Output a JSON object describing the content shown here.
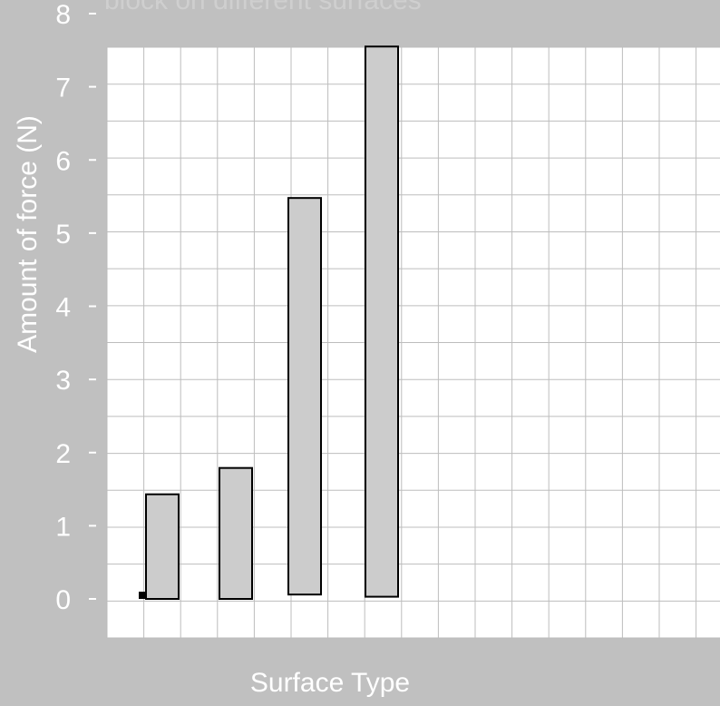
{
  "chart_data": {
    "type": "bar",
    "title": "block on different surfaces",
    "xlabel": "Surface Type",
    "ylabel": "Amount of force (N)",
    "ylim": [
      0,
      8
    ],
    "yticks": [
      "0",
      "1",
      "2",
      "3",
      "4",
      "5",
      "6",
      "7",
      "8"
    ],
    "grid": true,
    "categories": [
      "",
      "",
      "",
      ""
    ],
    "bars": [
      {
        "bottom": 0.0,
        "top": 1.43
      },
      {
        "bottom": 0.0,
        "top": 1.79
      },
      {
        "bottom": 0.06,
        "top": 5.48
      },
      {
        "bottom": 0.03,
        "top": 7.55
      }
    ],
    "colors": {
      "background": "#c0c0c0",
      "plot_area": "#ffffff",
      "grid": "#bdbdbd",
      "bar_fill": "#cccccc",
      "bar_stroke": "#000000",
      "text": "#ffffff",
      "title_text": "#d0d0d0"
    }
  }
}
